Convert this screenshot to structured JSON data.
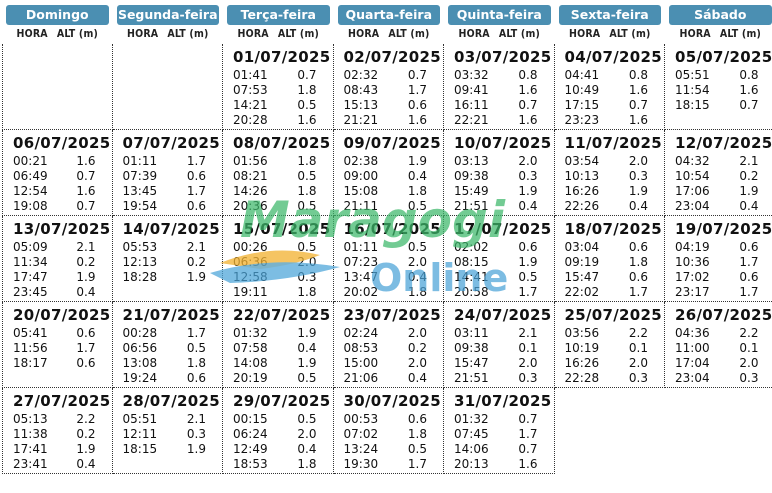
{
  "days": [
    "Domingo",
    "Segunda-feira",
    "Terça-feira",
    "Quarta-feira",
    "Quinta-feira",
    "Sexta-feira",
    "Sábado"
  ],
  "col_hora": "HORA",
  "col_alt": "ALT (m)",
  "watermark": {
    "line1": "Maragogi",
    "line2": "Online"
  },
  "weeks": [
    [
      null,
      null,
      {
        "date": "01/07/2025",
        "tides": [
          [
            "01:41",
            "0.7"
          ],
          [
            "07:53",
            "1.8"
          ],
          [
            "14:21",
            "0.5"
          ],
          [
            "20:28",
            "1.6"
          ]
        ]
      },
      {
        "date": "02/07/2025",
        "tides": [
          [
            "02:32",
            "0.7"
          ],
          [
            "08:43",
            "1.7"
          ],
          [
            "15:13",
            "0.6"
          ],
          [
            "21:21",
            "1.6"
          ]
        ]
      },
      {
        "date": "03/07/2025",
        "tides": [
          [
            "03:32",
            "0.8"
          ],
          [
            "09:41",
            "1.6"
          ],
          [
            "16:11",
            "0.7"
          ],
          [
            "22:21",
            "1.6"
          ]
        ]
      },
      {
        "date": "04/07/2025",
        "tides": [
          [
            "04:41",
            "0.8"
          ],
          [
            "10:49",
            "1.6"
          ],
          [
            "17:15",
            "0.7"
          ],
          [
            "23:23",
            "1.6"
          ]
        ]
      },
      {
        "date": "05/07/2025",
        "tides": [
          [
            "05:51",
            "0.8"
          ],
          [
            "11:54",
            "1.6"
          ],
          [
            "18:15",
            "0.7"
          ]
        ]
      }
    ],
    [
      {
        "date": "06/07/2025",
        "tides": [
          [
            "00:21",
            "1.6"
          ],
          [
            "06:49",
            "0.7"
          ],
          [
            "12:54",
            "1.6"
          ],
          [
            "19:08",
            "0.7"
          ]
        ]
      },
      {
        "date": "07/07/2025",
        "tides": [
          [
            "01:11",
            "1.7"
          ],
          [
            "07:39",
            "0.6"
          ],
          [
            "13:45",
            "1.7"
          ],
          [
            "19:54",
            "0.6"
          ]
        ]
      },
      {
        "date": "08/07/2025",
        "tides": [
          [
            "01:56",
            "1.8"
          ],
          [
            "08:21",
            "0.5"
          ],
          [
            "14:26",
            "1.8"
          ],
          [
            "20:36",
            "0.5"
          ]
        ]
      },
      {
        "date": "09/07/2025",
        "tides": [
          [
            "02:38",
            "1.9"
          ],
          [
            "09:00",
            "0.4"
          ],
          [
            "15:08",
            "1.8"
          ],
          [
            "21:11",
            "0.5"
          ]
        ]
      },
      {
        "date": "10/07/2025",
        "tides": [
          [
            "03:13",
            "2.0"
          ],
          [
            "09:38",
            "0.3"
          ],
          [
            "15:49",
            "1.9"
          ],
          [
            "21:51",
            "0.4"
          ]
        ]
      },
      {
        "date": "11/07/2025",
        "tides": [
          [
            "03:54",
            "2.0"
          ],
          [
            "10:13",
            "0.3"
          ],
          [
            "16:26",
            "1.9"
          ],
          [
            "22:26",
            "0.4"
          ]
        ]
      },
      {
        "date": "12/07/2025",
        "tides": [
          [
            "04:32",
            "2.1"
          ],
          [
            "10:54",
            "0.2"
          ],
          [
            "17:06",
            "1.9"
          ],
          [
            "23:04",
            "0.4"
          ]
        ]
      }
    ],
    [
      {
        "date": "13/07/2025",
        "tides": [
          [
            "05:09",
            "2.1"
          ],
          [
            "11:34",
            "0.2"
          ],
          [
            "17:47",
            "1.9"
          ],
          [
            "23:45",
            "0.4"
          ]
        ]
      },
      {
        "date": "14/07/2025",
        "tides": [
          [
            "05:53",
            "2.1"
          ],
          [
            "12:13",
            "0.2"
          ],
          [
            "18:28",
            "1.9"
          ]
        ]
      },
      {
        "date": "15/07/2025",
        "tides": [
          [
            "00:26",
            "0.5"
          ],
          [
            "06:36",
            "2.0"
          ],
          [
            "12:58",
            "0.3"
          ],
          [
            "19:11",
            "1.8"
          ]
        ]
      },
      {
        "date": "16/07/2025",
        "tides": [
          [
            "01:11",
            "0.5"
          ],
          [
            "07:23",
            "2.0"
          ],
          [
            "13:47",
            "0.4"
          ],
          [
            "20:02",
            "1.8"
          ]
        ]
      },
      {
        "date": "17/07/2025",
        "tides": [
          [
            "02:02",
            "0.6"
          ],
          [
            "08:15",
            "1.9"
          ],
          [
            "14:41",
            "0.5"
          ],
          [
            "20:58",
            "1.7"
          ]
        ]
      },
      {
        "date": "18/07/2025",
        "tides": [
          [
            "03:04",
            "0.6"
          ],
          [
            "09:19",
            "1.8"
          ],
          [
            "15:47",
            "0.6"
          ],
          [
            "22:02",
            "1.7"
          ]
        ]
      },
      {
        "date": "19/07/2025",
        "tides": [
          [
            "04:19",
            "0.6"
          ],
          [
            "10:36",
            "1.7"
          ],
          [
            "17:02",
            "0.6"
          ],
          [
            "23:17",
            "1.7"
          ]
        ]
      }
    ],
    [
      {
        "date": "20/07/2025",
        "tides": [
          [
            "05:41",
            "0.6"
          ],
          [
            "11:56",
            "1.7"
          ],
          [
            "18:17",
            "0.6"
          ]
        ]
      },
      {
        "date": "21/07/2025",
        "tides": [
          [
            "00:28",
            "1.7"
          ],
          [
            "06:56",
            "0.5"
          ],
          [
            "13:08",
            "1.8"
          ],
          [
            "19:24",
            "0.6"
          ]
        ]
      },
      {
        "date": "22/07/2025",
        "tides": [
          [
            "01:32",
            "1.9"
          ],
          [
            "07:58",
            "0.4"
          ],
          [
            "14:08",
            "1.9"
          ],
          [
            "20:19",
            "0.5"
          ]
        ]
      },
      {
        "date": "23/07/2025",
        "tides": [
          [
            "02:24",
            "2.0"
          ],
          [
            "08:53",
            "0.2"
          ],
          [
            "15:00",
            "2.0"
          ],
          [
            "21:06",
            "0.4"
          ]
        ]
      },
      {
        "date": "24/07/2025",
        "tides": [
          [
            "03:11",
            "2.1"
          ],
          [
            "09:38",
            "0.1"
          ],
          [
            "15:47",
            "2.0"
          ],
          [
            "21:51",
            "0.3"
          ]
        ]
      },
      {
        "date": "25/07/2025",
        "tides": [
          [
            "03:56",
            "2.2"
          ],
          [
            "10:19",
            "0.1"
          ],
          [
            "16:26",
            "2.0"
          ],
          [
            "22:28",
            "0.3"
          ]
        ]
      },
      {
        "date": "26/07/2025",
        "tides": [
          [
            "04:36",
            "2.2"
          ],
          [
            "11:00",
            "0.1"
          ],
          [
            "17:04",
            "2.0"
          ],
          [
            "23:04",
            "0.3"
          ]
        ]
      }
    ],
    [
      {
        "date": "27/07/2025",
        "tides": [
          [
            "05:13",
            "2.2"
          ],
          [
            "11:38",
            "0.2"
          ],
          [
            "17:41",
            "1.9"
          ],
          [
            "23:41",
            "0.4"
          ]
        ]
      },
      {
        "date": "28/07/2025",
        "tides": [
          [
            "05:51",
            "2.1"
          ],
          [
            "12:11",
            "0.3"
          ],
          [
            "18:15",
            "1.9"
          ]
        ]
      },
      {
        "date": "29/07/2025",
        "tides": [
          [
            "00:15",
            "0.5"
          ],
          [
            "06:24",
            "2.0"
          ],
          [
            "12:49",
            "0.4"
          ],
          [
            "18:53",
            "1.8"
          ]
        ]
      },
      {
        "date": "30/07/2025",
        "tides": [
          [
            "00:53",
            "0.6"
          ],
          [
            "07:02",
            "1.8"
          ],
          [
            "13:24",
            "0.5"
          ],
          [
            "19:30",
            "1.7"
          ]
        ]
      },
      {
        "date": "31/07/2025",
        "tides": [
          [
            "01:32",
            "0.7"
          ],
          [
            "07:45",
            "1.7"
          ],
          [
            "14:06",
            "0.7"
          ],
          [
            "20:13",
            "1.6"
          ]
        ]
      },
      null,
      null
    ]
  ]
}
